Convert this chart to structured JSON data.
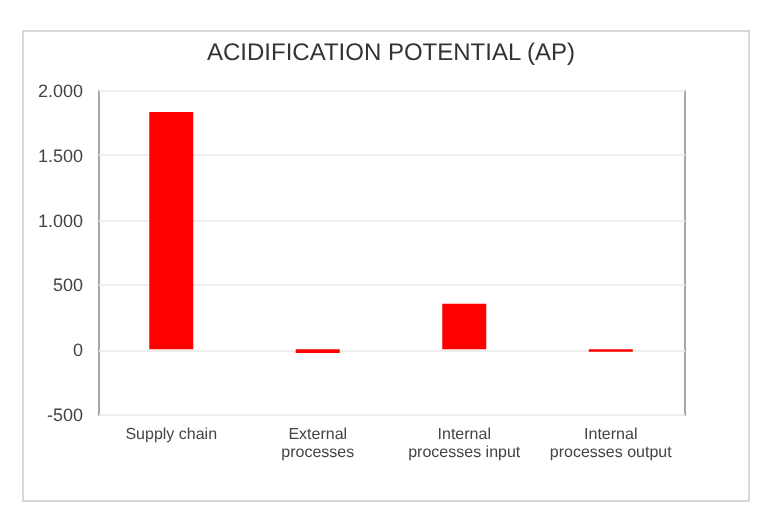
{
  "chart_data": {
    "type": "bar",
    "title": "ACIDIFICATION POTENTIAL (AP)",
    "categories": [
      "Supply chain",
      "External processes",
      "Internal processes input",
      "Internal processes output"
    ],
    "values": [
      1830,
      -30,
      350,
      -20
    ],
    "color": "#ff0000",
    "ylim": [
      -500,
      2000
    ],
    "yticks": [
      -500,
      0,
      500,
      {
        "value": 1000,
        "label": "1.000"
      },
      {
        "value": 1500,
        "label": "1.500"
      },
      {
        "value": 2000,
        "label": "2.000"
      }
    ],
    "grid": "y"
  }
}
